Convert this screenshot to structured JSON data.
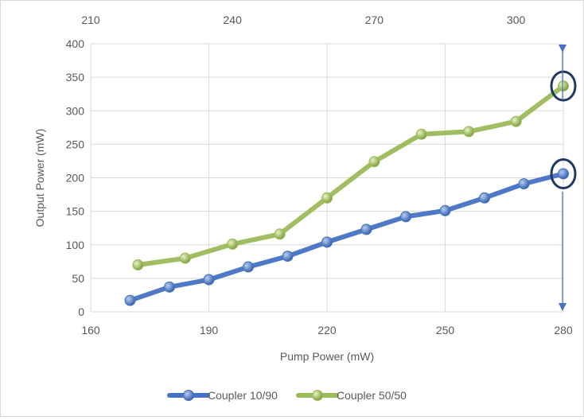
{
  "chart_data": {
    "type": "line",
    "title": "",
    "xlabel": "Pump Power (mW)",
    "ylabel": "Output Power (mW)",
    "x_axis": {
      "range": [
        160,
        280
      ],
      "ticks": [
        160,
        190,
        220,
        250,
        280
      ]
    },
    "x2_axis": {
      "range": [
        210,
        310
      ],
      "ticks": [
        210,
        240,
        270,
        300
      ]
    },
    "y_axis": {
      "range": [
        0,
        400
      ],
      "ticks": [
        0,
        50,
        100,
        150,
        200,
        250,
        300,
        350,
        400
      ]
    },
    "grid": true,
    "legend": "bottom",
    "series": [
      {
        "name": "Coupler 10/90",
        "axis": "bottom",
        "color": "#4472c4",
        "x": [
          170,
          180,
          190,
          200,
          210,
          220,
          230,
          240,
          250,
          260,
          270,
          280
        ],
        "y": [
          17,
          37,
          48,
          67,
          83,
          104,
          123,
          142,
          151,
          170,
          191,
          206
        ]
      },
      {
        "name": "Coupler 50/50",
        "axis": "top",
        "color": "#9bbb59",
        "x": [
          220,
          230,
          240,
          250,
          260,
          270,
          280,
          290,
          300,
          310
        ],
        "y": [
          70,
          80,
          101,
          116,
          170,
          224,
          265,
          269,
          284,
          337
        ]
      }
    ],
    "annotations": [
      {
        "type": "circle",
        "series": "Coupler 50/50",
        "point_index": 9
      },
      {
        "type": "circle",
        "series": "Coupler 10/90",
        "point_index": 11
      },
      {
        "type": "double-arrow",
        "direction": "vertical",
        "x": 280
      }
    ]
  }
}
